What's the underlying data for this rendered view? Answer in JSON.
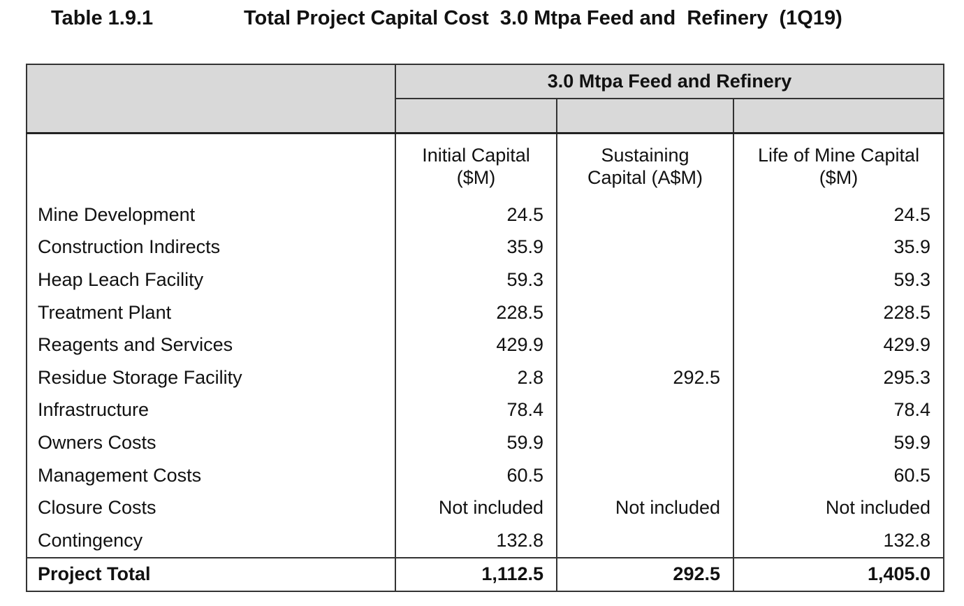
{
  "caption": {
    "number": "Table 1.9.1",
    "title": "Total Project Capital Cost  3.0 Mtpa Feed and  Refinery  (1Q19)"
  },
  "table": {
    "group_header": "3.0 Mtpa Feed and Refinery",
    "columns": [
      {
        "line1": "Initial Capital",
        "line2": "($M)"
      },
      {
        "line1": "Sustaining",
        "line2": "Capital (A$M)"
      },
      {
        "line1": "Life of Mine Capital",
        "line2": "($M)"
      }
    ],
    "rows": [
      {
        "label": "Mine Development",
        "initial": "24.5",
        "sustaining": "",
        "lom": "24.5"
      },
      {
        "label": "Construction Indirects",
        "initial": "35.9",
        "sustaining": "",
        "lom": "35.9"
      },
      {
        "label": "Heap Leach Facility",
        "initial": "59.3",
        "sustaining": "",
        "lom": "59.3"
      },
      {
        "label": "Treatment Plant",
        "initial": "228.5",
        "sustaining": "",
        "lom": "228.5"
      },
      {
        "label": "Reagents and Services",
        "initial": "429.9",
        "sustaining": "",
        "lom": "429.9"
      },
      {
        "label": "Residue Storage Facility",
        "initial": "2.8",
        "sustaining": "292.5",
        "lom": "295.3"
      },
      {
        "label": "Infrastructure",
        "initial": "78.4",
        "sustaining": "",
        "lom": "78.4"
      },
      {
        "label": "Owners Costs",
        "initial": "59.9",
        "sustaining": "",
        "lom": "59.9"
      },
      {
        "label": "Management Costs",
        "initial": "60.5",
        "sustaining": "",
        "lom": "60.5"
      },
      {
        "label": "Closure Costs",
        "initial": "Not included",
        "sustaining": "Not included",
        "lom": "Not included"
      },
      {
        "label": "Contingency",
        "initial": "132.8",
        "sustaining": "",
        "lom": "132.8"
      }
    ],
    "total": {
      "label": "Project Total",
      "initial": "1,112.5",
      "sustaining": "292.5",
      "lom": "1,405.0"
    }
  },
  "colors": {
    "header_fill": "#d9d9d9",
    "border": "#333333"
  }
}
